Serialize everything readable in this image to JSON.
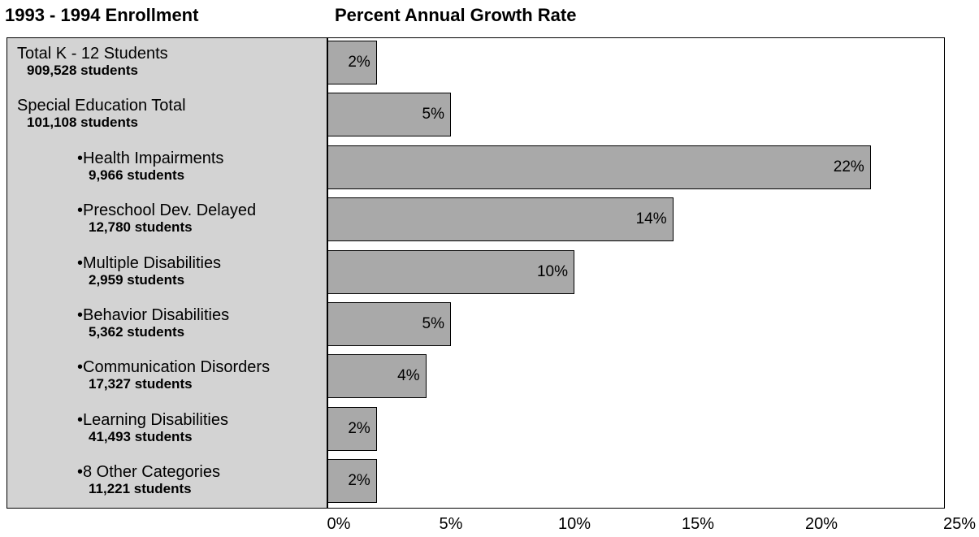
{
  "titles": {
    "left": "1993 - 1994 Enrollment",
    "right": "Percent Annual Growth Rate"
  },
  "chart_data": {
    "type": "bar",
    "orientation": "horizontal",
    "categories": [
      {
        "name": "Total K - 12 Students",
        "count": "909,528 students",
        "indent": false
      },
      {
        "name": "Special Education Total",
        "count": "101,108 students",
        "indent": false
      },
      {
        "name": "•Health Impairments",
        "count": "9,966 students",
        "indent": true
      },
      {
        "name": "•Preschool Dev. Delayed",
        "count": "12,780 students",
        "indent": true
      },
      {
        "name": "•Multiple Disabilities",
        "count": "2,959 students",
        "indent": true
      },
      {
        "name": "•Behavior Disabilities",
        "count": "5,362 students",
        "indent": true
      },
      {
        "name": "•Communication Disorders",
        "count": "17,327 students",
        "indent": true
      },
      {
        "name": "•Learning Disabilities",
        "count": "41,493 students",
        "indent": true
      },
      {
        "name": "•8 Other Categories",
        "count": "11,221 students",
        "indent": true
      }
    ],
    "values": [
      2,
      5,
      22,
      14,
      10,
      5,
      4,
      2,
      2
    ],
    "value_labels": [
      "2%",
      "5%",
      "22%",
      "14%",
      "10%",
      "5%",
      "4%",
      "2%",
      "2%"
    ],
    "xlim": [
      0,
      25
    ],
    "xticks": [
      0,
      5,
      10,
      15,
      20,
      25
    ],
    "xtick_labels": [
      "0%",
      "5%",
      "10%",
      "15%",
      "20%",
      "25%"
    ],
    "bar_color": "#a9a9a9",
    "panel_color": "#d3d3d3",
    "grid": false,
    "legend": "none"
  }
}
